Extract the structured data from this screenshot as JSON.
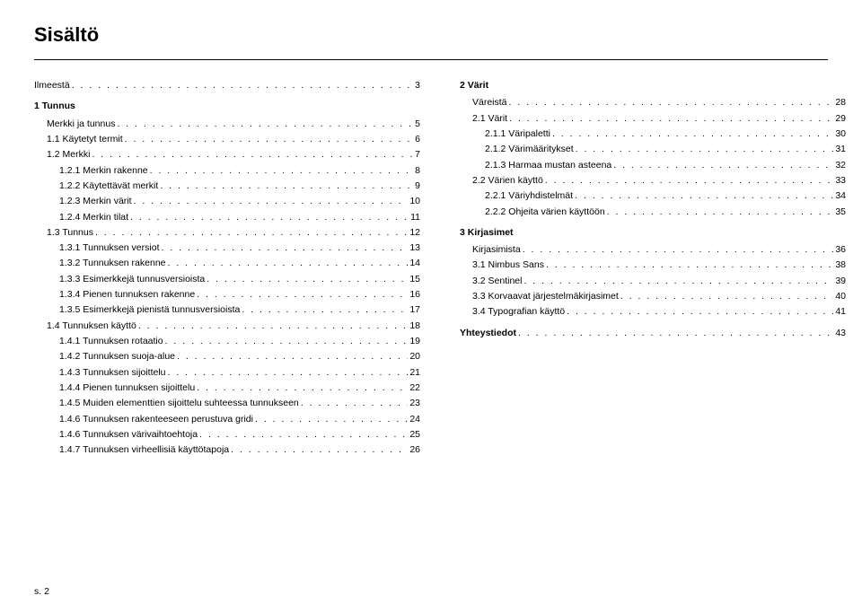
{
  "page": {
    "title": "Sisältö",
    "footer": "s. 2"
  },
  "left": {
    "intro": {
      "label": "Ilmeestä",
      "page": "3",
      "indent": 0,
      "bold": false
    },
    "section1_head": "1 Tunnus",
    "section1": [
      {
        "label": "Merkki ja tunnus",
        "page": "5",
        "indent": 1
      },
      {
        "label": "1.1 Käytetyt termit",
        "page": "6",
        "indent": 1
      },
      {
        "label": "1.2 Merkki",
        "page": "7",
        "indent": 1
      },
      {
        "label": "1.2.1 Merkin rakenne",
        "page": "8",
        "indent": 2
      },
      {
        "label": "1.2.2 Käytettävät merkit",
        "page": "9",
        "indent": 2
      },
      {
        "label": "1.2.3 Merkin värit",
        "page": "10",
        "indent": 2
      },
      {
        "label": "1.2.4 Merkin tilat",
        "page": "11",
        "indent": 2
      },
      {
        "label": "1.3 Tunnus",
        "page": "12",
        "indent": 1
      },
      {
        "label": "1.3.1 Tunnuksen versiot",
        "page": "13",
        "indent": 2
      },
      {
        "label": "1.3.2 Tunnuksen rakenne",
        "page": "14",
        "indent": 2
      },
      {
        "label": "1.3.3 Esimerkkejä tunnusversioista",
        "page": "15",
        "indent": 2
      },
      {
        "label": "1.3.4 Pienen tunnuksen rakenne",
        "page": "16",
        "indent": 2
      },
      {
        "label": "1.3.5 Esimerkkejä pienistä tunnusversioista",
        "page": "17",
        "indent": 2
      },
      {
        "label": "1.4 Tunnuksen käyttö",
        "page": "18",
        "indent": 1
      },
      {
        "label": "1.4.1 Tunnuksen rotaatio",
        "page": "19",
        "indent": 2
      },
      {
        "label": "1.4.2 Tunnuksen suoja-alue",
        "page": "20",
        "indent": 2
      },
      {
        "label": "1.4.3 Tunnuksen sijoittelu",
        "page": "21",
        "indent": 2
      },
      {
        "label": "1.4.4 Pienen tunnuksen sijoittelu",
        "page": "22",
        "indent": 2
      },
      {
        "label": "1.4.5 Muiden elementtien sijoittelu suhteessa tunnukseen",
        "page": "23",
        "indent": 2
      },
      {
        "label": "1.4.6 Tunnuksen rakenteeseen perustuva gridi",
        "page": "24",
        "indent": 2
      },
      {
        "label": "1.4.6 Tunnuksen värivaihtoehtoja",
        "page": "25",
        "indent": 2
      },
      {
        "label": "1.4.7 Tunnuksen virheellisiä käyttötapoja",
        "page": "26",
        "indent": 2
      }
    ]
  },
  "right": {
    "section2_head": "2 Värit",
    "section2": [
      {
        "label": "Väreistä",
        "page": "28",
        "indent": 1
      },
      {
        "label": "2.1 Värit",
        "page": "29",
        "indent": 1
      },
      {
        "label": "2.1.1 Väripaletti",
        "page": "30",
        "indent": 2
      },
      {
        "label": "2.1.2 Värimääritykset",
        "page": "31",
        "indent": 2
      },
      {
        "label": "2.1.3 Harmaa mustan asteena",
        "page": "32",
        "indent": 2
      },
      {
        "label": "2.2 Värien käyttö",
        "page": "33",
        "indent": 1
      },
      {
        "label": "2.2.1 Väriyhdistelmät",
        "page": "34",
        "indent": 2
      },
      {
        "label": "2.2.2 Ohjeita värien käyttöön",
        "page": "35",
        "indent": 2
      }
    ],
    "section3_head": "3 Kirjasimet",
    "section3": [
      {
        "label": "Kirjasimista",
        "page": "36",
        "indent": 1
      },
      {
        "label": "3.1 Nimbus Sans",
        "page": "38",
        "indent": 1
      },
      {
        "label": "3.2 Sentinel",
        "page": "39",
        "indent": 1
      },
      {
        "label": "3.3 Korvaavat järjestelmäkirjasimet",
        "page": "40",
        "indent": 1
      },
      {
        "label": "3.4 Typografian käyttö",
        "page": "41",
        "indent": 1
      }
    ],
    "contact": {
      "label": "Yhteystiedot",
      "page": "43",
      "indent": 0,
      "bold": true
    }
  }
}
